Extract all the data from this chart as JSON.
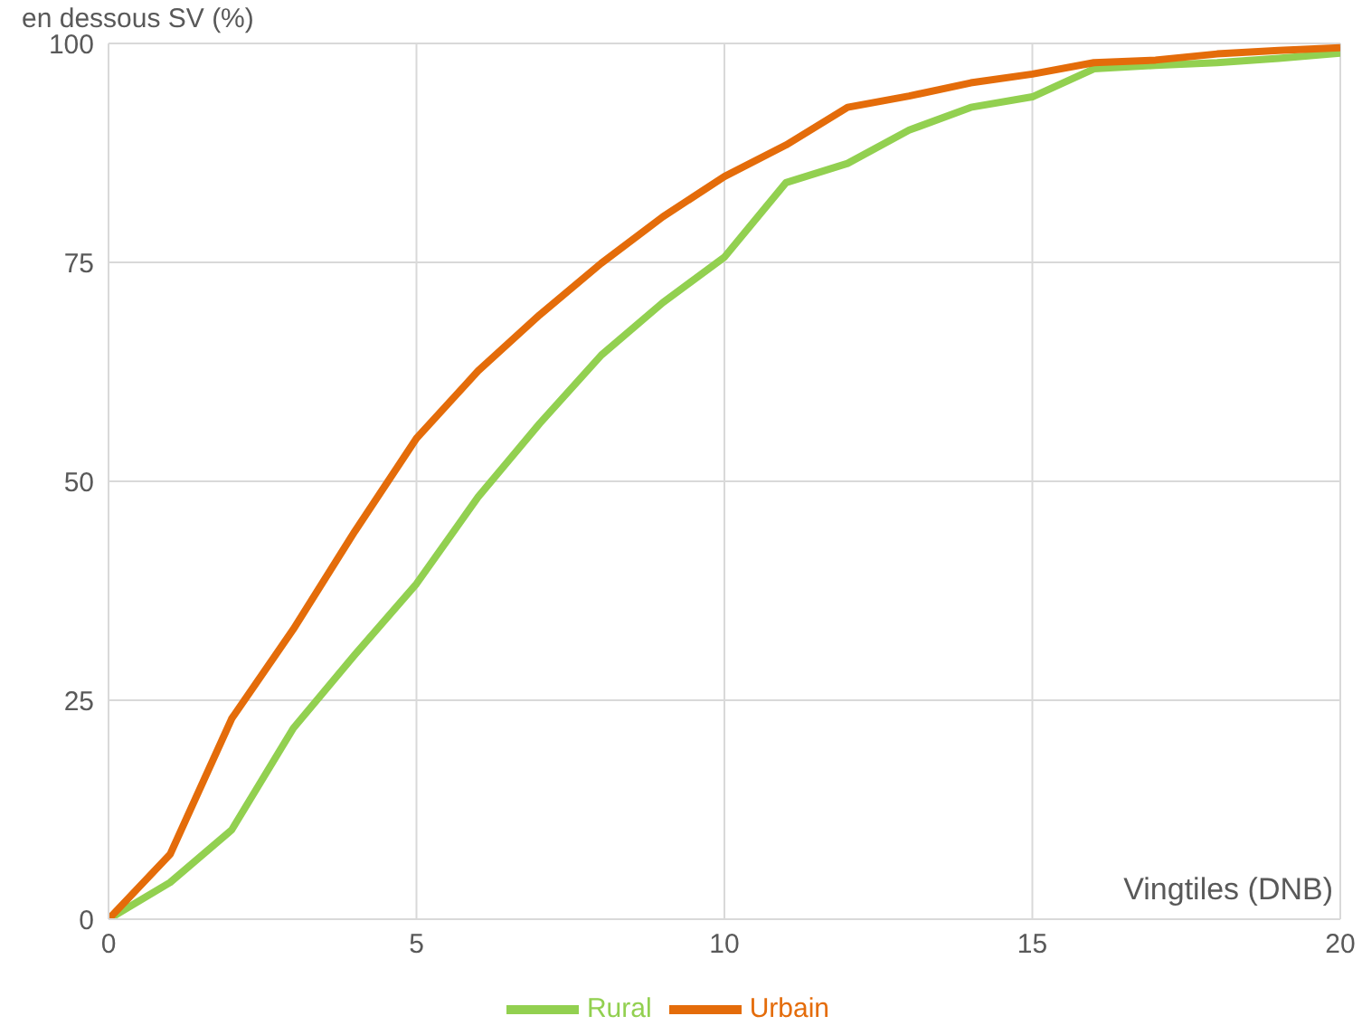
{
  "chart_data": {
    "type": "line",
    "xlabel": "Vingtiles (DNB)",
    "ylabel": "en dessous SV (%)",
    "x": [
      0,
      1,
      2,
      3,
      4,
      5,
      6,
      7,
      8,
      9,
      10,
      11,
      12,
      13,
      14,
      15,
      16,
      17,
      18,
      19,
      20
    ],
    "series": [
      {
        "name": "Rural",
        "color": "#92d050",
        "values": [
          0,
          4.2,
          10.2,
          21.8,
          30.2,
          38.3,
          48.2,
          56.6,
          64.4,
          70.4,
          75.6,
          84.1,
          86.3,
          90.1,
          92.7,
          93.9,
          97.1,
          97.5,
          97.8,
          98.3,
          98.9
        ]
      },
      {
        "name": "Urbain",
        "color": "#e46c0a",
        "values": [
          0,
          7.4,
          22.9,
          33.1,
          44.3,
          54.9,
          62.6,
          69,
          74.9,
          80.2,
          84.8,
          88.4,
          92.7,
          94,
          95.5,
          96.5,
          97.8,
          98.1,
          98.8,
          99.2,
          99.5
        ]
      }
    ],
    "xlim": [
      0,
      20
    ],
    "xticks": [
      0,
      5,
      10,
      15,
      20
    ],
    "ylim": [
      0,
      100
    ],
    "yticks": [
      0,
      25,
      50,
      75,
      100
    ],
    "grid": true,
    "legend": "bottom",
    "marker": "none",
    "line_style": "solid"
  }
}
